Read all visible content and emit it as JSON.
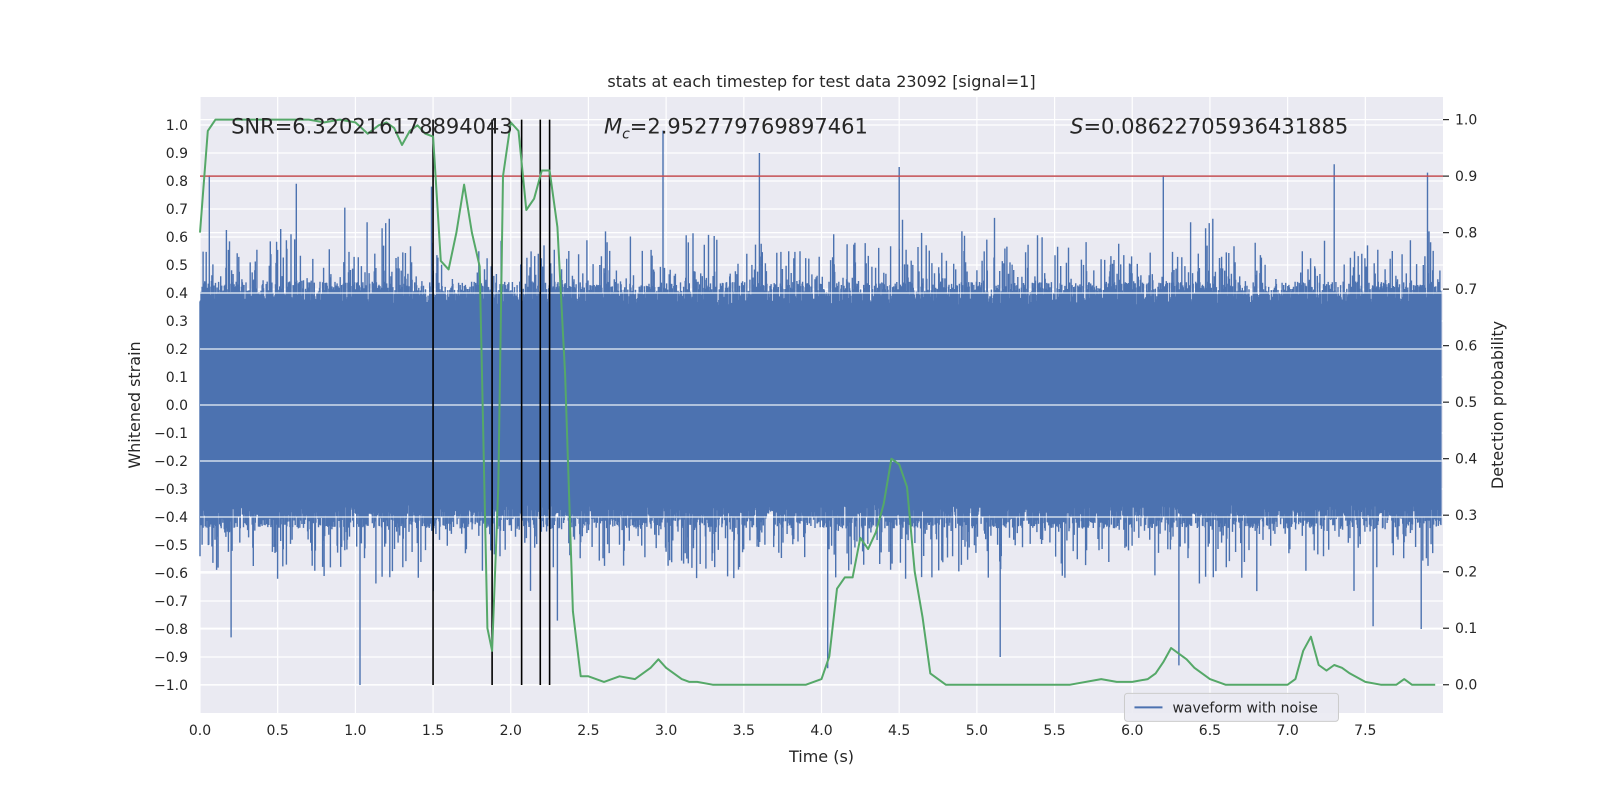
{
  "chart_data": {
    "type": "line",
    "title": "stats at each timestep for test data 23092 [signal=1]",
    "xlabel": "Time (s)",
    "ylabel": "Whitened strain",
    "y2label": "Detection probability",
    "xlim": [
      0.0,
      8.0
    ],
    "ylim": [
      -1.1,
      1.1
    ],
    "y2lim": [
      -0.05,
      1.04
    ],
    "x_ticks": [
      "0.0",
      "0.5",
      "1.0",
      "1.5",
      "2.0",
      "2.5",
      "3.0",
      "3.5",
      "4.0",
      "4.5",
      "5.0",
      "5.5",
      "6.0",
      "6.5",
      "7.0",
      "7.5"
    ],
    "y_ticks": [
      "1.0",
      "0.9",
      "0.8",
      "0.7",
      "0.6",
      "0.5",
      "0.4",
      "0.3",
      "0.2",
      "0.1",
      "0.0",
      "−0.1",
      "−0.2",
      "−0.3",
      "−0.4",
      "−0.5",
      "−0.6",
      "−0.7",
      "−0.8",
      "−0.9",
      "−1.0"
    ],
    "y2_ticks": [
      "1.0",
      "0.9",
      "0.8",
      "0.7",
      "0.6",
      "0.5",
      "0.4",
      "0.3",
      "0.2",
      "0.1",
      "0.0"
    ],
    "annotations": {
      "snr": "SNR=6.320216178894043",
      "mc": "=2.952779769897461",
      "s": "=0.08622705936431885"
    },
    "threshold": 0.9,
    "event_times": [
      1.5,
      1.88,
      2.07,
      2.19,
      2.25
    ],
    "series": [
      {
        "name": "waveform with noise",
        "axis": "left",
        "color": "#4c72b0",
        "envelope_upper": 0.42,
        "envelope_lower": -0.42,
        "notable_peaks": [
          [
            0.06,
            0.82
          ],
          [
            0.62,
            0.79
          ],
          [
            1.49,
            0.78
          ],
          [
            2.98,
            0.98
          ],
          [
            3.6,
            0.9
          ],
          [
            4.5,
            0.85
          ],
          [
            6.2,
            0.82
          ],
          [
            7.3,
            0.86
          ],
          [
            7.9,
            0.83
          ]
        ],
        "notable_troughs": [
          [
            1.03,
            -1.0
          ],
          [
            0.2,
            -0.83
          ],
          [
            2.3,
            -0.77
          ],
          [
            4.04,
            -0.94
          ],
          [
            5.15,
            -0.9
          ],
          [
            6.3,
            -0.93
          ],
          [
            7.55,
            -0.79
          ],
          [
            7.86,
            -0.8
          ]
        ]
      },
      {
        "axis": "right",
        "color": "#55a868",
        "x": [
          0.0,
          0.05,
          0.1,
          0.2,
          0.3,
          0.4,
          0.5,
          0.6,
          0.7,
          0.8,
          0.9,
          1.0,
          1.08,
          1.15,
          1.2,
          1.25,
          1.3,
          1.35,
          1.4,
          1.45,
          1.5,
          1.55,
          1.6,
          1.65,
          1.7,
          1.75,
          1.8,
          1.85,
          1.88,
          1.92,
          1.95,
          2.0,
          2.05,
          2.1,
          2.15,
          2.2,
          2.25,
          2.3,
          2.35,
          2.4,
          2.45,
          2.5,
          2.6,
          2.7,
          2.8,
          2.9,
          2.95,
          3.0,
          3.1,
          3.15,
          3.2,
          3.3,
          3.4,
          3.5,
          3.6,
          3.7,
          3.8,
          3.9,
          4.0,
          4.05,
          4.1,
          4.15,
          4.2,
          4.25,
          4.3,
          4.35,
          4.4,
          4.45,
          4.5,
          4.55,
          4.6,
          4.65,
          4.7,
          4.8,
          4.9,
          5.0,
          5.2,
          5.4,
          5.6,
          5.8,
          5.9,
          6.0,
          6.1,
          6.15,
          6.2,
          6.25,
          6.3,
          6.35,
          6.4,
          6.5,
          6.6,
          6.7,
          6.9,
          7.0,
          7.05,
          7.1,
          7.15,
          7.2,
          7.25,
          7.3,
          7.35,
          7.4,
          7.5,
          7.6,
          7.7,
          7.75,
          7.8,
          7.85,
          7.95
        ],
        "y": [
          0.8,
          0.98,
          1.0,
          1.0,
          1.0,
          1.0,
          1.0,
          1.0,
          1.0,
          0.995,
          1.0,
          0.995,
          0.975,
          0.99,
          0.995,
          0.985,
          0.955,
          0.98,
          0.99,
          0.975,
          0.97,
          0.75,
          0.735,
          0.8,
          0.885,
          0.8,
          0.74,
          0.1,
          0.06,
          0.35,
          0.9,
          0.995,
          0.98,
          0.84,
          0.86,
          0.91,
          0.91,
          0.81,
          0.55,
          0.13,
          0.015,
          0.015,
          0.005,
          0.015,
          0.01,
          0.03,
          0.045,
          0.03,
          0.01,
          0.005,
          0.005,
          0.0,
          0.0,
          0.0,
          0.0,
          0.0,
          0.0,
          0.0,
          0.01,
          0.05,
          0.17,
          0.19,
          0.19,
          0.26,
          0.24,
          0.27,
          0.32,
          0.4,
          0.39,
          0.35,
          0.2,
          0.12,
          0.02,
          0.0,
          0.0,
          0.0,
          0.0,
          0.0,
          0.0,
          0.01,
          0.005,
          0.005,
          0.01,
          0.02,
          0.04,
          0.065,
          0.055,
          0.045,
          0.03,
          0.01,
          0.0,
          0.0,
          0.0,
          0.0,
          0.01,
          0.06,
          0.085,
          0.035,
          0.025,
          0.035,
          0.03,
          0.02,
          0.005,
          0.0,
          0.0,
          0.01,
          0.0,
          0.0,
          0.0
        ]
      }
    ],
    "legend": {
      "position": "lower-right",
      "entries": [
        "waveform with noise"
      ]
    },
    "grid": true
  },
  "colors": {
    "plot_bg": "#eaeaf2",
    "grid": "#ffffff",
    "waveform": "#4c72b0",
    "probability": "#55a868",
    "threshold": "#c44e52",
    "events": "#000000"
  }
}
